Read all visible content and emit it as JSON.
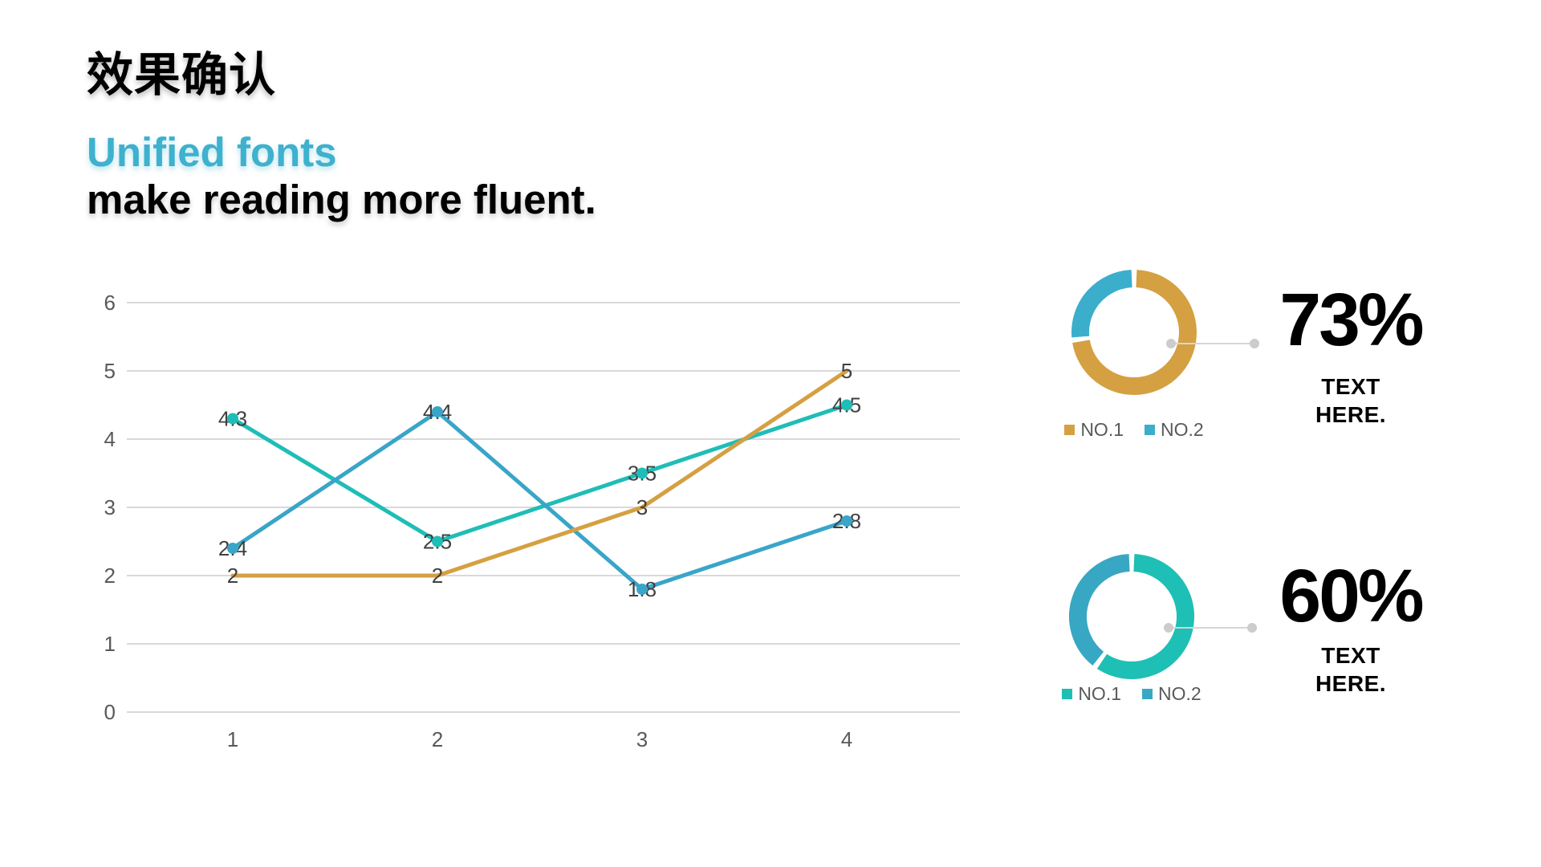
{
  "header": {
    "title": "效果确认",
    "subtitle_accent": "Unified fonts",
    "subtitle_rest": "make reading more fluent.",
    "accent_color": "#3EB1CE"
  },
  "chart_data": [
    {
      "type": "line",
      "x": [
        1,
        2,
        3,
        4
      ],
      "series": [
        {
          "color": "#1FBDB7",
          "values": [
            4.3,
            2.5,
            3.5,
            4.5
          ],
          "markers": true
        },
        {
          "color": "#39A5C9",
          "values": [
            2.4,
            4.4,
            1.8,
            2.8
          ],
          "markers": true
        },
        {
          "color": "#D5A042",
          "values": [
            2,
            2,
            3,
            5
          ],
          "markers": false
        }
      ],
      "ylim": [
        0,
        6
      ],
      "yticks": [
        0,
        1,
        2,
        3,
        4,
        5,
        6
      ],
      "grid": true,
      "legend": "none",
      "label_color": "#404040",
      "axis_color": "#595959",
      "grid_color": "#D9D9D9"
    },
    {
      "type": "pie",
      "subtype": "donut",
      "labels": [
        "NO.1",
        "NO.2"
      ],
      "values": [
        73,
        27
      ],
      "colors": [
        "#D5A042",
        "#3BAECB"
      ],
      "callout": "73%",
      "caption_line1": "TEXT",
      "caption_line2": "HERE."
    },
    {
      "type": "pie",
      "subtype": "donut",
      "labels": [
        "NO.1",
        "NO.2"
      ],
      "values": [
        60,
        40
      ],
      "colors": [
        "#1EBFB4",
        "#38A7C4"
      ],
      "callout": "60%",
      "caption_line1": "TEXT",
      "caption_line2": "HERE."
    }
  ],
  "callout_style": {
    "line_color": "#D6D6D6",
    "dot_color": "#CCCCCC"
  }
}
